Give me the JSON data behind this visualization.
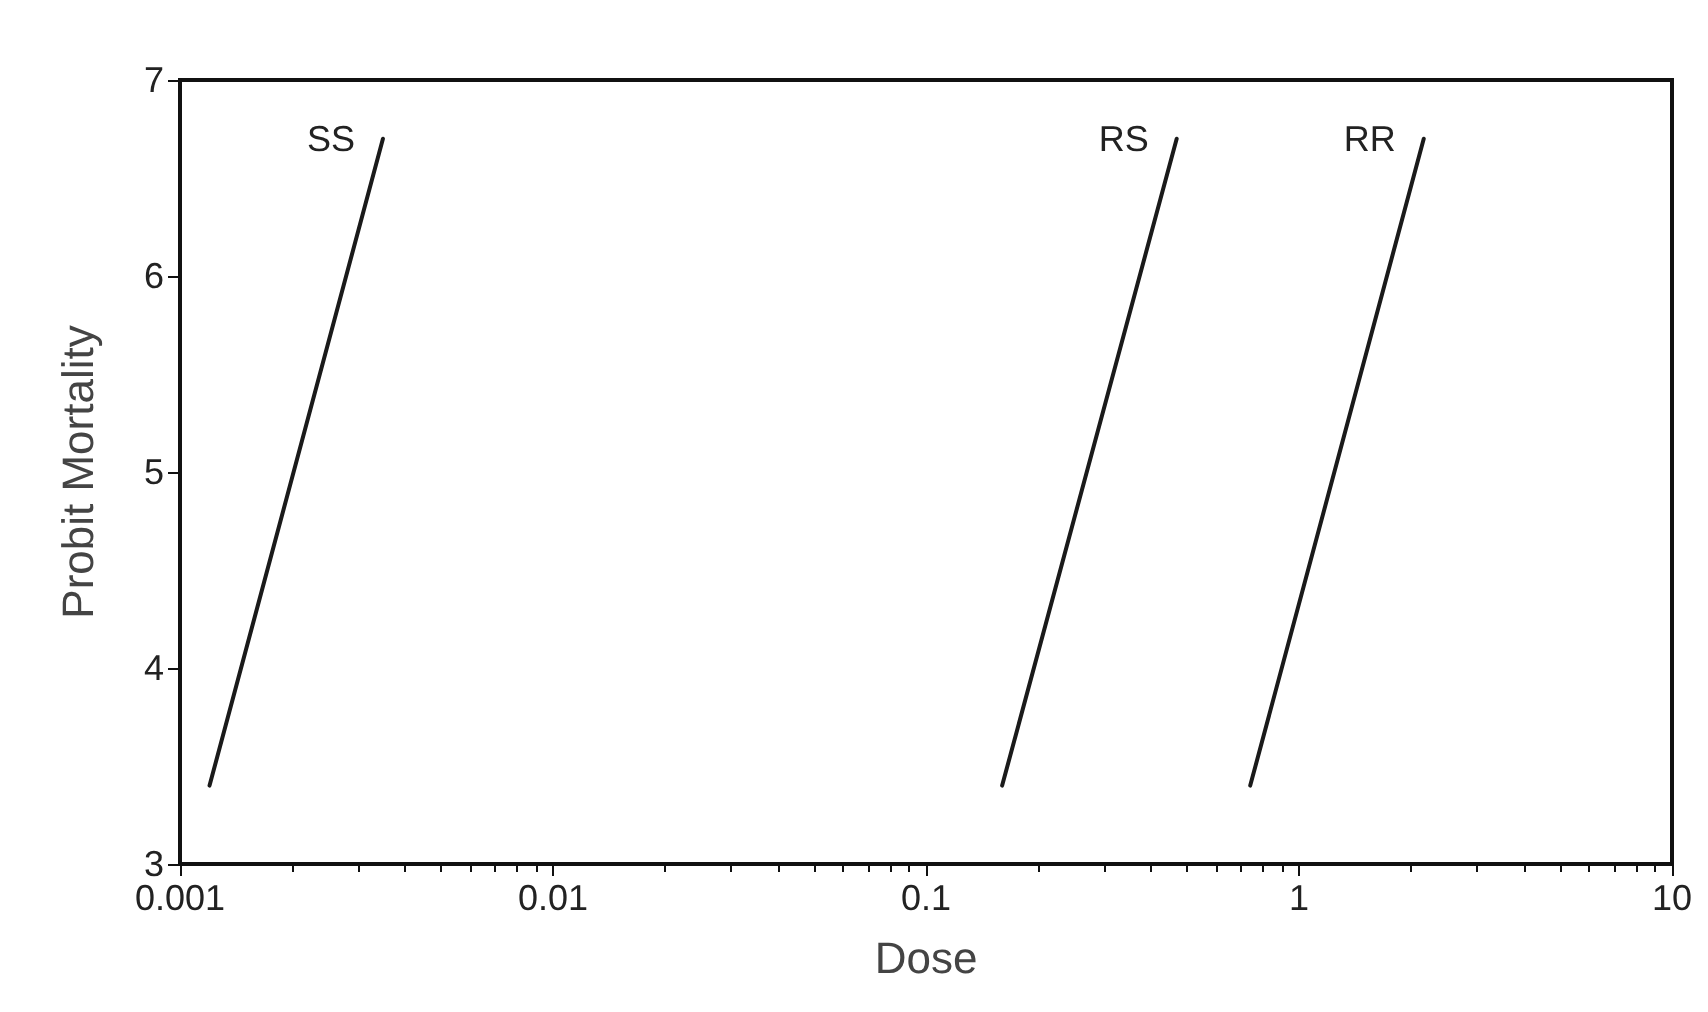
{
  "chart_data": {
    "type": "line",
    "xlabel": "Dose",
    "ylabel": "Probit Mortality",
    "log": "x",
    "grid": false,
    "legend": false,
    "marker": "none",
    "line_style": "solid",
    "xlim": [
      0.001,
      10
    ],
    "xticks": [
      0.001,
      0.01,
      0.1,
      1,
      10
    ],
    "ylim": [
      3,
      7
    ],
    "yticks": [
      3,
      4,
      5,
      6,
      7
    ],
    "series": [
      {
        "name": "SS",
        "color": "#1a1a1a",
        "x": [
          0.0012,
          0.0035
        ],
        "values": [
          3.4,
          6.7
        ]
      },
      {
        "name": "RS",
        "color": "#1a1a1a",
        "x": [
          0.16,
          0.47
        ],
        "values": [
          3.4,
          6.7
        ]
      },
      {
        "name": "RR",
        "color": "#1a1a1a",
        "x": [
          0.74,
          2.16
        ],
        "values": [
          3.4,
          6.7
        ]
      }
    ]
  }
}
